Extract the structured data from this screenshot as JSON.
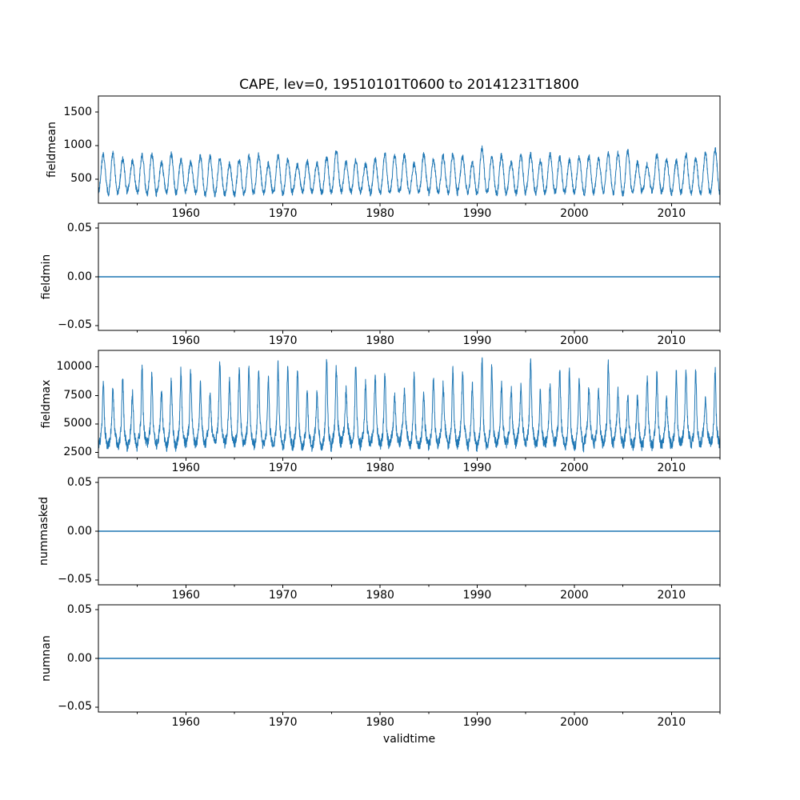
{
  "title": "CAPE, lev=0, 19510101T0600 to 20141231T1800",
  "xlabel": "validtime",
  "colors": {
    "line": "#1f77b4",
    "axis": "#000000",
    "background": "#ffffff",
    "text": "#000000"
  },
  "chart_data": {
    "type": "line",
    "title": "CAPE, lev=0, 19510101T0600 to 20141231T1800",
    "xlabel": "validtime",
    "x_axis": {
      "variable": "validtime",
      "xlim_years": [
        1951,
        2015
      ],
      "major_ticks": [
        1960,
        1970,
        1980,
        1990,
        2000,
        2010
      ],
      "major_tick_labels": [
        "1960",
        "1970",
        "1980",
        "1990",
        "2000",
        "2010"
      ],
      "minor_ticks": [
        1955,
        1965,
        1975,
        1985,
        1995,
        2005,
        2015
      ]
    },
    "grid": false,
    "legend": "none",
    "subplots": [
      {
        "name": "fieldmean",
        "ylabel": "fieldmean",
        "yticks": [
          500,
          1000,
          1500
        ],
        "ytick_labels": [
          "500",
          "1000",
          "1500"
        ],
        "ylim": [
          140,
          1740
        ],
        "series": {
          "kind": "seasonal",
          "description": "annual cycle, 6-hourly noise",
          "trough_range": [
            270,
            335
          ],
          "peak_range": [
            700,
            880
          ],
          "peak_boost": 85,
          "peak_boost_probability": 0.15,
          "noise": 45,
          "shape_power": 1.15,
          "period_years": 1
        }
      },
      {
        "name": "fieldmin",
        "ylabel": "fieldmin",
        "yticks": [
          -0.05,
          0,
          0.05
        ],
        "ytick_labels": [
          "−0.05",
          "0.00",
          "0.05"
        ],
        "ylim": [
          -0.055,
          0.055
        ],
        "series": {
          "kind": "constant",
          "value": 0
        }
      },
      {
        "name": "fieldmax",
        "ylabel": "fieldmax",
        "yticks": [
          2500,
          5000,
          7500,
          10000
        ],
        "ytick_labels": [
          "2500",
          "5000",
          "7500",
          "10000"
        ],
        "ylim": [
          2050,
          11450
        ],
        "series": {
          "kind": "seasonal-spiky",
          "description": "dense noisy band with sharp annual maxima",
          "base_range": [
            2950,
            3450
          ],
          "band_range": [
            1600,
            2200
          ],
          "spike_range": [
            2100,
            5200
          ],
          "spike_boost": 900,
          "spike_boost_probability": 0.08,
          "spike_power": 9,
          "noise": 470,
          "clamp": [
            2480,
            11080
          ],
          "period_years": 1
        }
      },
      {
        "name": "nummasked",
        "ylabel": "nummasked",
        "yticks": [
          -0.05,
          0,
          0.05
        ],
        "ytick_labels": [
          "−0.05",
          "0.00",
          "0.05"
        ],
        "ylim": [
          -0.055,
          0.055
        ],
        "series": {
          "kind": "constant",
          "value": 0
        }
      },
      {
        "name": "numnan",
        "ylabel": "numnan",
        "yticks": [
          -0.05,
          0,
          0.05
        ],
        "ytick_labels": [
          "−0.05",
          "0.00",
          "0.05"
        ],
        "ylim": [
          -0.055,
          0.055
        ],
        "series": {
          "kind": "constant",
          "value": 0
        }
      }
    ]
  }
}
